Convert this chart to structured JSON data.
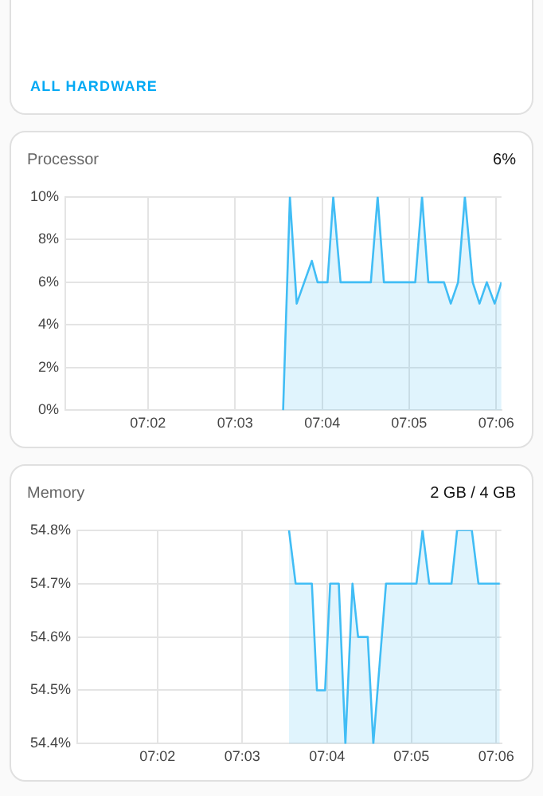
{
  "chart_data": [
    {
      "type": "area",
      "title": "Processor",
      "subtitle": "6%",
      "annotations": [
        "ALL HARDWARE"
      ],
      "xlim": [
        7.0175,
        7.101
      ],
      "xticks": [
        {
          "value": 7.0333,
          "label": "07:02"
        },
        {
          "value": 7.05,
          "label": "07:03"
        },
        {
          "value": 7.0667,
          "label": "07:04"
        },
        {
          "value": 7.0833,
          "label": "07:05"
        },
        {
          "value": 7.1,
          "label": "07:06"
        }
      ],
      "ylim": [
        0,
        10
      ],
      "yticks": [
        {
          "value": 0,
          "label": "0%"
        },
        {
          "value": 2,
          "label": "2%"
        },
        {
          "value": 4,
          "label": "4%"
        },
        {
          "value": 6,
          "label": "6%"
        },
        {
          "value": 8,
          "label": "8%"
        },
        {
          "value": 10,
          "label": "10%"
        }
      ],
      "grid": true,
      "legend": false,
      "marker": "none",
      "line_style": "solid",
      "series": [
        {
          "color": "#41bdf5",
          "x": [
            7.0592,
            7.0605,
            7.0618,
            7.0647,
            7.0658,
            7.0677,
            7.0688,
            7.0702,
            7.076,
            7.0773,
            7.0785,
            7.0845,
            7.0858,
            7.087,
            7.09,
            7.0913,
            7.0927,
            7.094,
            7.0955,
            7.0968,
            7.0982,
            7.0997,
            7.101
          ],
          "values": [
            0,
            10,
            5,
            7,
            6,
            6,
            10,
            6,
            6,
            10,
            6,
            6,
            10,
            6,
            6,
            5,
            6,
            10,
            6,
            5,
            6,
            5,
            6
          ]
        }
      ]
    },
    {
      "type": "area",
      "title": "Memory",
      "subtitle": "2 GB / 4 GB",
      "xlim": [
        7.0175,
        7.101
      ],
      "xticks": [
        {
          "value": 7.0333,
          "label": "07:02"
        },
        {
          "value": 7.05,
          "label": "07:03"
        },
        {
          "value": 7.0667,
          "label": "07:04"
        },
        {
          "value": 7.0833,
          "label": "07:05"
        },
        {
          "value": 7.1,
          "label": "07:06"
        }
      ],
      "ylim": [
        54.4,
        54.8
      ],
      "yticks": [
        {
          "value": 54.4,
          "label": "54.4%"
        },
        {
          "value": 54.5,
          "label": "54.5%"
        },
        {
          "value": 54.6,
          "label": "54.6%"
        },
        {
          "value": 54.7,
          "label": "54.7%"
        },
        {
          "value": 54.8,
          "label": "54.8%"
        }
      ],
      "grid": true,
      "legend": false,
      "marker": "none",
      "line_style": "solid",
      "series": [
        {
          "color": "#41bdf5",
          "x": [
            7.0592,
            7.0605,
            7.0637,
            7.0647,
            7.0663,
            7.0673,
            7.069,
            7.0703,
            7.0717,
            7.0728,
            7.0747,
            7.0758,
            7.0783,
            7.0843,
            7.0855,
            7.0868,
            7.0912,
            7.0923,
            7.0952,
            7.0965,
            7.1007
          ],
          "values": [
            54.8,
            54.7,
            54.7,
            54.5,
            54.5,
            54.7,
            54.7,
            54.4,
            54.7,
            54.6,
            54.6,
            54.4,
            54.7,
            54.7,
            54.8,
            54.7,
            54.7,
            54.8,
            54.8,
            54.7,
            54.7
          ]
        }
      ]
    }
  ]
}
